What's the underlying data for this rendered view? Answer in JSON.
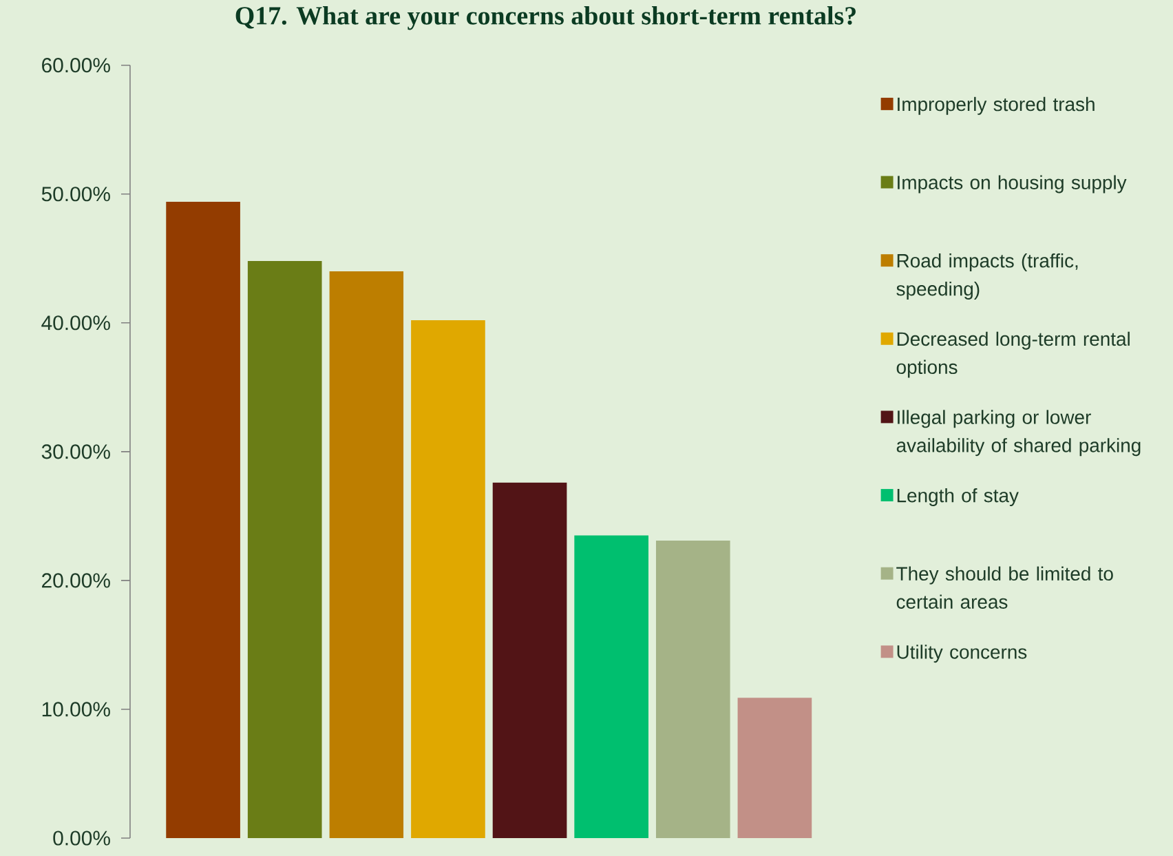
{
  "chart_data": {
    "type": "bar",
    "title": "Q17. What are your concerns about short-term rentals?",
    "categories": [
      null
    ],
    "series": [
      {
        "name": "Improperly stored trash",
        "color": "#933c00",
        "values": [
          49.4
        ]
      },
      {
        "name": "Impacts on housing supply",
        "color": "#6a7d16",
        "values": [
          44.8
        ]
      },
      {
        "name": "Road impacts (traffic, speeding)",
        "color": "#bd7e00",
        "values": [
          44.0
        ]
      },
      {
        "name": "Decreased long-term rental options",
        "color": "#e0a800",
        "values": [
          40.2
        ]
      },
      {
        "name": "Illegal parking or lower availability of shared parking",
        "color": "#521416",
        "values": [
          27.6
        ]
      },
      {
        "name": "Length of stay",
        "color": "#00bf6f",
        "values": [
          23.5
        ]
      },
      {
        "name": "They should be limited to certain areas",
        "color": "#a5b387",
        "values": [
          23.1
        ]
      },
      {
        "name": "Utility concerns",
        "color": "#c29087",
        "values": [
          10.9
        ]
      }
    ],
    "ylim": [
      0,
      60
    ],
    "yticks": [
      {
        "value": 0,
        "label": "0.00%"
      },
      {
        "value": 10,
        "label": "10.00%"
      },
      {
        "value": 20,
        "label": "20.00%"
      },
      {
        "value": 30,
        "label": "30.00%"
      },
      {
        "value": 40,
        "label": "40.00%"
      },
      {
        "value": 50,
        "label": "50.00%"
      },
      {
        "value": 60,
        "label": "60.00%"
      }
    ],
    "legend": "right"
  }
}
